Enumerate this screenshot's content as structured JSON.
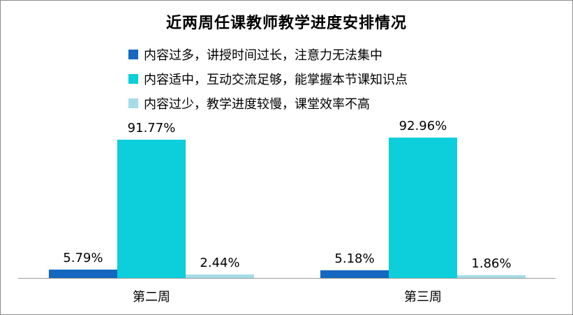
{
  "title": "近两周任课教师教学进度安排情况",
  "legend": {
    "items": [
      {
        "label": "内容过多，讲授时间过长，注意力无法集中",
        "color": "#1567C0"
      },
      {
        "label": "内容适中，互动交流足够，能掌握本节课知识点",
        "color": "#0DCEDB"
      },
      {
        "label": "内容过少，教学进度较慢，课堂效率不高",
        "color": "#A5DCE7"
      }
    ]
  },
  "chart_data": {
    "type": "bar",
    "title": "近两周任课教师教学进度安排情况",
    "categories": [
      "第二周",
      "第三周"
    ],
    "series": [
      {
        "name": "内容过多，讲授时间过长，注意力无法集中",
        "color": "#1567C0",
        "values": [
          5.79,
          5.18
        ]
      },
      {
        "name": "内容适中，互动交流足够，能掌握本节课知识点",
        "color": "#0DCEDB",
        "values": [
          91.77,
          92.96
        ]
      },
      {
        "name": "内容过少，教学进度较慢，课堂效率不高",
        "color": "#A5DCE7",
        "values": [
          2.44,
          1.86
        ]
      }
    ],
    "value_labels": [
      [
        "5.79%",
        "91.77%",
        "2.44%"
      ],
      [
        "5.18%",
        "92.96%",
        "1.86%"
      ]
    ],
    "xlabel": "",
    "ylabel": "",
    "ylim": [
      0,
      100
    ],
    "unit": "%",
    "grid": false,
    "value_axis_visible": false,
    "legend_position": "top-left"
  },
  "frame": {
    "border_color": "#8c8c8c",
    "axis_color": "#9b9b9b",
    "background": "#ffffff"
  }
}
